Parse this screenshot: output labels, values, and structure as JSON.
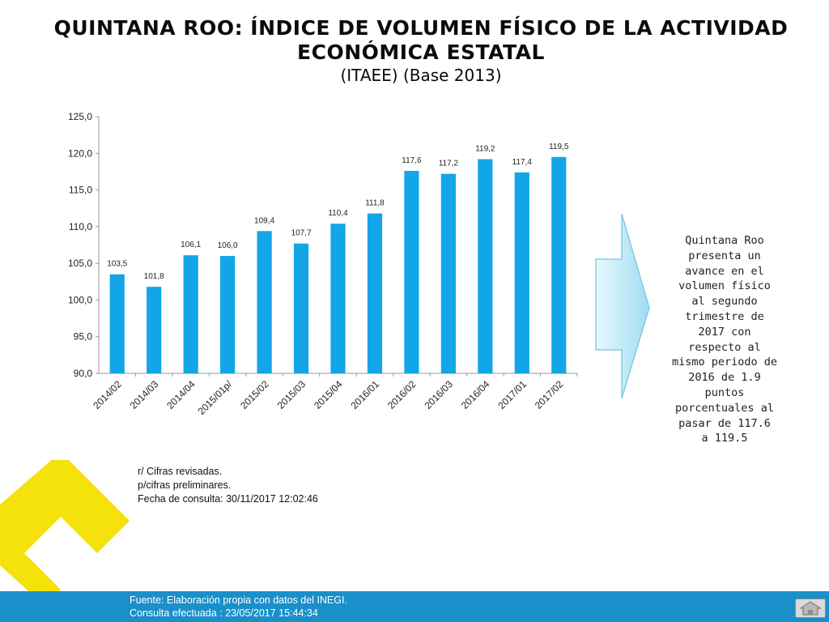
{
  "title": {
    "line1": "QUINTANA ROO: ÍNDICE DE VOLUMEN FÍSICO DE LA ACTIVIDAD",
    "line2": "ECONÓMICA ESTATAL",
    "subtitle": "(ITAEE) (Base  2013)"
  },
  "chart_data": {
    "type": "bar",
    "categories": [
      "2014/02",
      "2014/03",
      "2014/04",
      "2015/01p/",
      "2015/02",
      "2015/03",
      "2015/04",
      "2016/01",
      "2016/02",
      "2016/03",
      "2016/04",
      "2017/01",
      "2017/02"
    ],
    "values": [
      103.5,
      101.8,
      106.1,
      106.0,
      109.4,
      107.7,
      110.4,
      111.8,
      117.6,
      117.2,
      119.2,
      117.4,
      119.5
    ],
    "data_labels": [
      "103,5",
      "101,8",
      "106,1",
      "106,0",
      "109,4",
      "107,7",
      "110,4",
      "111,8",
      "117,6",
      "117,2",
      "119,2",
      "117,4",
      "119,5"
    ],
    "yticks": [
      "90,0",
      "95,0",
      "100,0",
      "105,0",
      "110,0",
      "115,0",
      "120,0",
      "125,0"
    ],
    "ylim": [
      90,
      125
    ],
    "grid": false,
    "bar_color": "#12a5e8"
  },
  "callout": {
    "text_lines": [
      "Quintana Roo",
      "presenta un",
      "avance en el",
      "volumen físico",
      "al segundo",
      "trimestre de",
      "2017 con",
      "respecto al",
      "mismo periodo de",
      "2016  de 1.9",
      "puntos",
      "porcentuales al",
      "pasar de  117.6",
      "a 119.5"
    ]
  },
  "notes": [
    "r/ Cifras revisadas.",
    "p/cifras preliminares.",
    "Fecha de consulta: 30/11/2017 12:02:46"
  ],
  "footer": {
    "line1": "Fuente: Elaboración propia con datos del INEGI.",
    "line2": "Consulta efectuada : 23/05/2017 15:44:34"
  },
  "colors": {
    "accent_yellow": "#f5e20a",
    "footer_blue": "#1a8fc9",
    "arrow_fill": "#bfe9f7"
  },
  "icons": {
    "home": "home-icon"
  }
}
